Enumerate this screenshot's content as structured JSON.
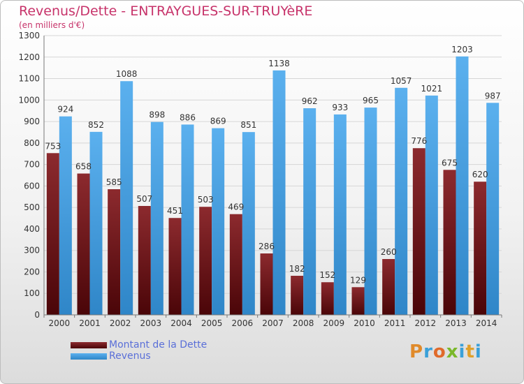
{
  "header": {
    "title": "Revenus/Dette - ENTRAYGUES-SUR-TRUYèRE",
    "subtitle": "(en milliers d'€)"
  },
  "legend": {
    "items": [
      {
        "label": "Montant de la Dette",
        "color": "#7a1e22"
      },
      {
        "label": "Revenus",
        "color": "#4a9fe0"
      }
    ]
  },
  "logo": {
    "letters": [
      "P",
      "r",
      "o",
      "x",
      "i",
      "t",
      "i"
    ],
    "colors": [
      "#e08a2a",
      "#3aa0d8",
      "#e06a2a",
      "#7ab82a",
      "#3aa0d8",
      "#e0a02a",
      "#3aa0d8"
    ]
  },
  "chart_data": {
    "type": "bar",
    "categories": [
      "2000",
      "2001",
      "2002",
      "2003",
      "2004",
      "2005",
      "2006",
      "2007",
      "2008",
      "2009",
      "2010",
      "2011",
      "2012",
      "2013",
      "2014"
    ],
    "series": [
      {
        "name": "Montant de la Dette",
        "values": [
          753,
          658,
          585,
          507,
          451,
          503,
          469,
          286,
          182,
          152,
          129,
          260,
          776,
          675,
          620
        ],
        "color": "#7a1e22"
      },
      {
        "name": "Revenus",
        "values": [
          924,
          852,
          1088,
          898,
          886,
          869,
          851,
          1138,
          962,
          933,
          965,
          1057,
          1021,
          1203,
          987
        ],
        "color": "#4a9fe0"
      }
    ],
    "ylim": [
      0,
      1300
    ],
    "yticks": [
      0,
      100,
      200,
      300,
      400,
      500,
      600,
      700,
      800,
      900,
      1000,
      1100,
      1200,
      1300
    ],
    "grid": true,
    "legend_position": "bottom-left"
  }
}
